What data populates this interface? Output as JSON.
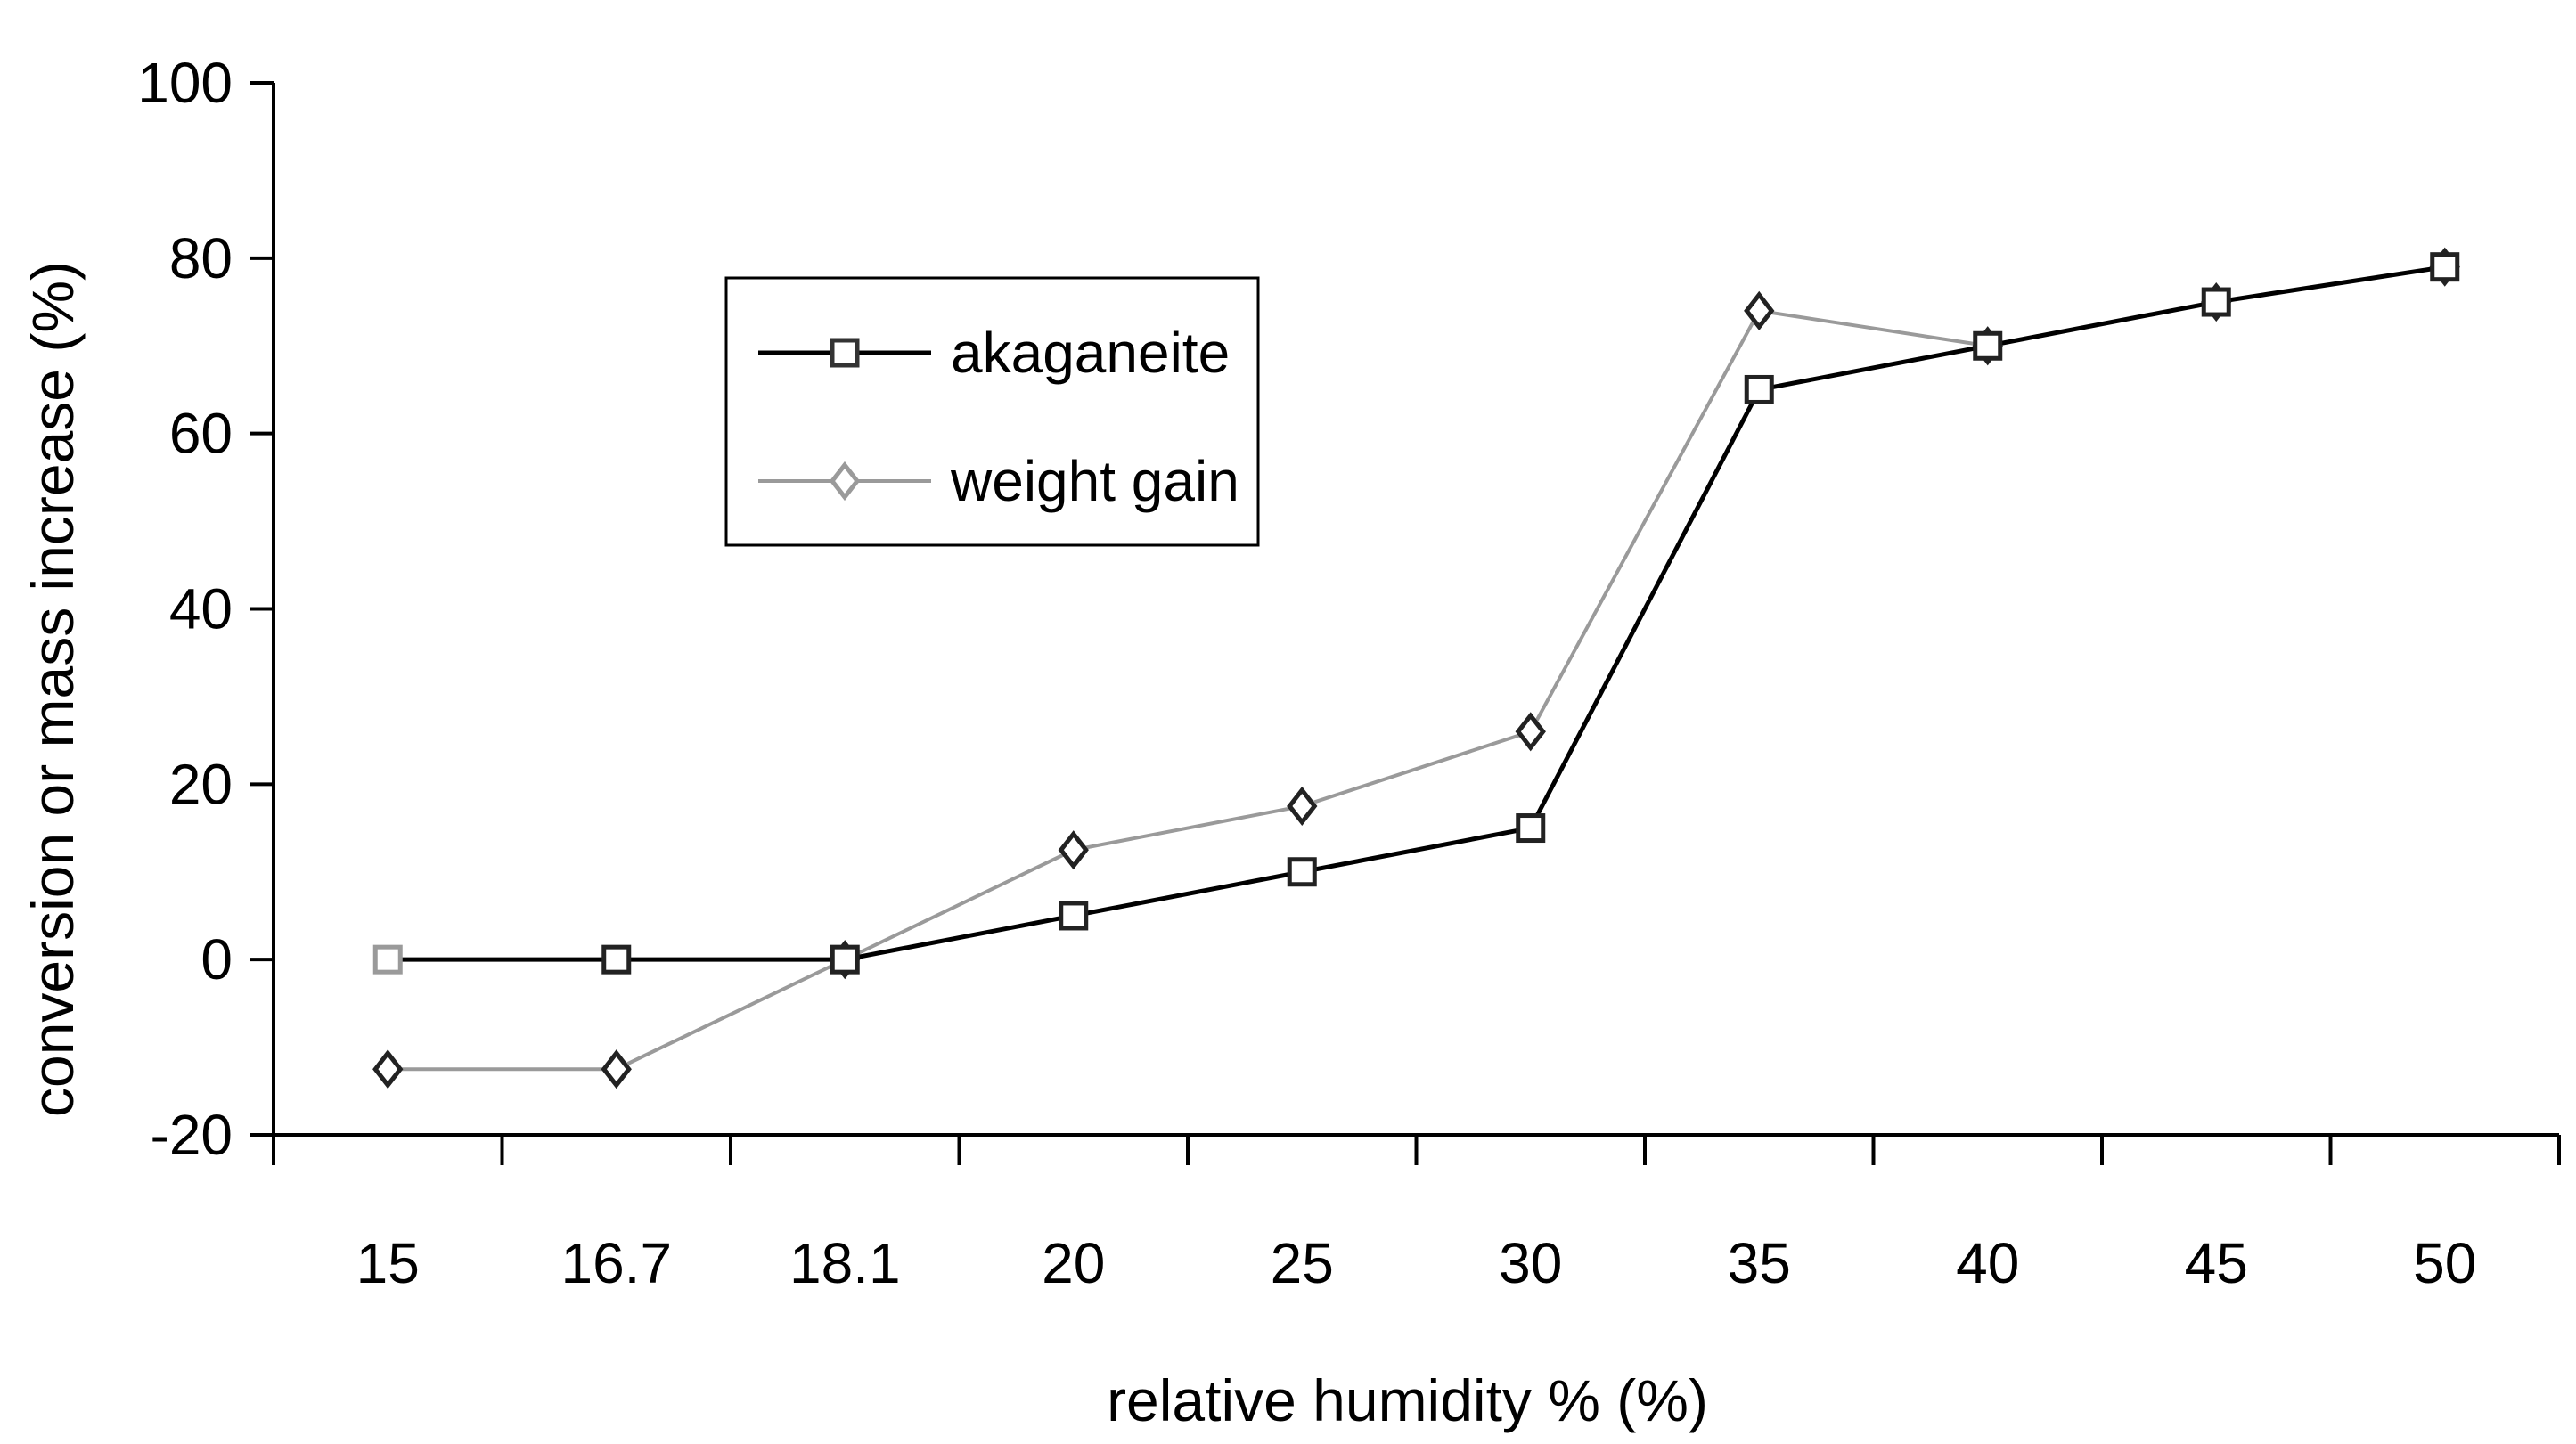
{
  "chart_data": {
    "type": "line",
    "title": "",
    "xlabel": "relative humidity % (%)",
    "ylabel": "conversion or mass increase (%)",
    "categories": [
      "15",
      "16.7",
      "18.1",
      "20",
      "25",
      "30",
      "35",
      "40",
      "45",
      "50"
    ],
    "ylim": [
      -20,
      100
    ],
    "yticks": [
      -20,
      0,
      20,
      40,
      60,
      80,
      100
    ],
    "grid": false,
    "legend_position": "upper-left-inside",
    "series": [
      {
        "name": "akaganeite",
        "marker": "square",
        "color": "#000000",
        "values": [
          0,
          0,
          0,
          5,
          10,
          15,
          65,
          70,
          75,
          79
        ]
      },
      {
        "name": "weight gain",
        "marker": "diamond",
        "color": "#8c8c8c",
        "values": [
          -12.5,
          -12.5,
          0,
          12.5,
          17.5,
          26,
          74,
          70,
          75,
          79
        ]
      }
    ]
  }
}
